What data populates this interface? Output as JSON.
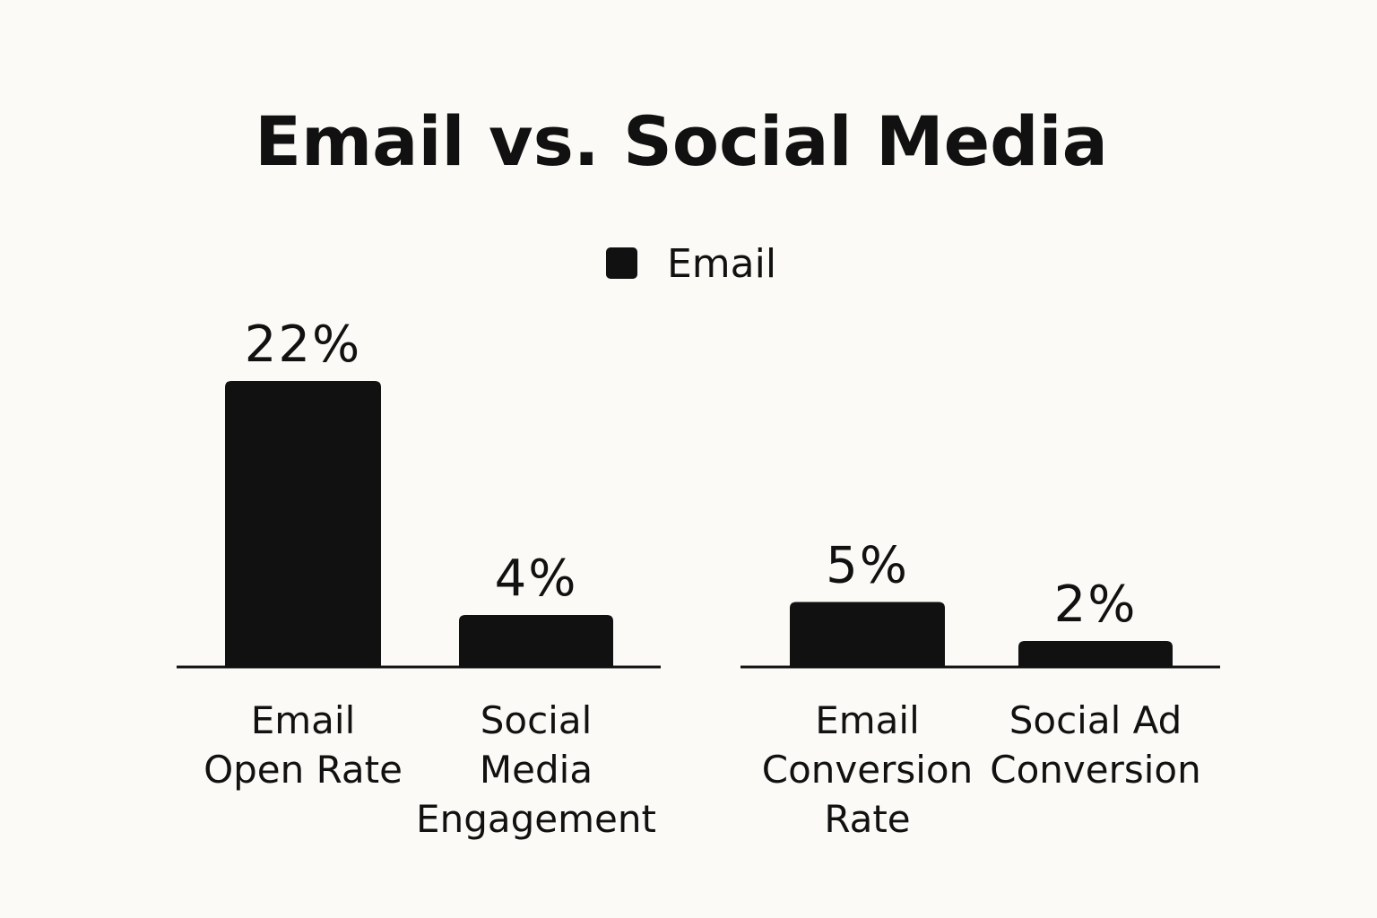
{
  "chart_data": [
    {
      "type": "bar",
      "title": "Email vs. Social Media",
      "legend": {
        "placement": "top-center",
        "entries": [
          {
            "name": "Email",
            "color": "#111111"
          }
        ]
      },
      "categories": [
        [
          "Email",
          "Open Rate"
        ],
        [
          "Social",
          "Media",
          "Engagement"
        ]
      ],
      "values": [
        22,
        4
      ],
      "data_labels": [
        "22%",
        "4%"
      ],
      "unit": "%",
      "grid": false
    },
    {
      "type": "bar",
      "categories": [
        [
          "Email",
          "Conversion",
          "Rate"
        ],
        [
          "Social Ad",
          "Conversion"
        ]
      ],
      "values": [
        5,
        2
      ],
      "data_labels": [
        "5%",
        "2%"
      ],
      "unit": "%",
      "grid": false
    }
  ],
  "colors": {
    "background": "#fbfaf6",
    "bar": "#111111",
    "text": "#111111",
    "axis": "#111111"
  }
}
